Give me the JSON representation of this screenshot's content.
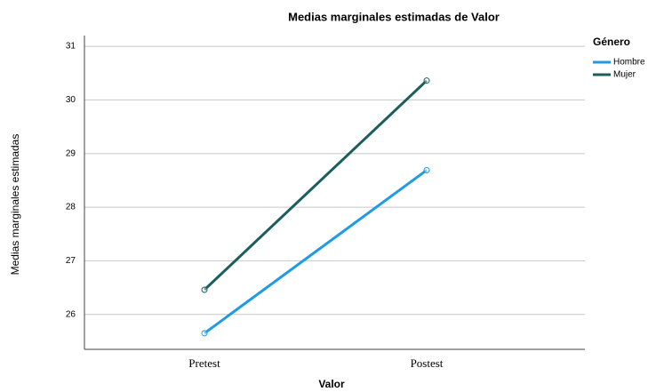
{
  "chart_data": {
    "type": "line",
    "title": "Medias marginales estimadas de Valor",
    "x_label": "Valor",
    "y_label": "Medias marginales estimadas",
    "legend_title": "Género",
    "categories": [
      "Pretest",
      "Postest"
    ],
    "series": [
      {
        "name": "Hombre",
        "color": "#1f9be6",
        "values": [
          25.65,
          28.69
        ]
      },
      {
        "name": "Mujer",
        "color": "#1a5e5e",
        "values": [
          26.46,
          30.36
        ]
      }
    ],
    "ylim": [
      25.35,
      31.2
    ],
    "yticks": [
      26,
      27,
      28,
      29,
      30,
      31
    ],
    "grid": true,
    "legend_position": "right"
  }
}
